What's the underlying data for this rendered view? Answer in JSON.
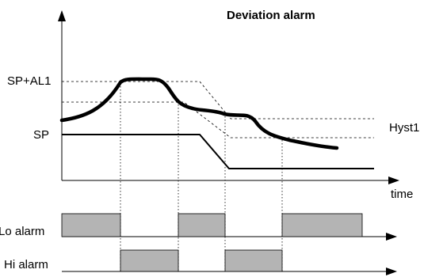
{
  "title": "Deviation alarm",
  "labels": {
    "sp_al1": "SP+AL1",
    "sp": "SP",
    "hyst": "Hyst1",
    "time": "time",
    "lo_alarm": "Lo alarm",
    "hi_alarm": "Hi alarm"
  },
  "colors": {
    "line": "#000000",
    "alarm_fill": "#b4b4b4",
    "background": "#ffffff"
  }
}
